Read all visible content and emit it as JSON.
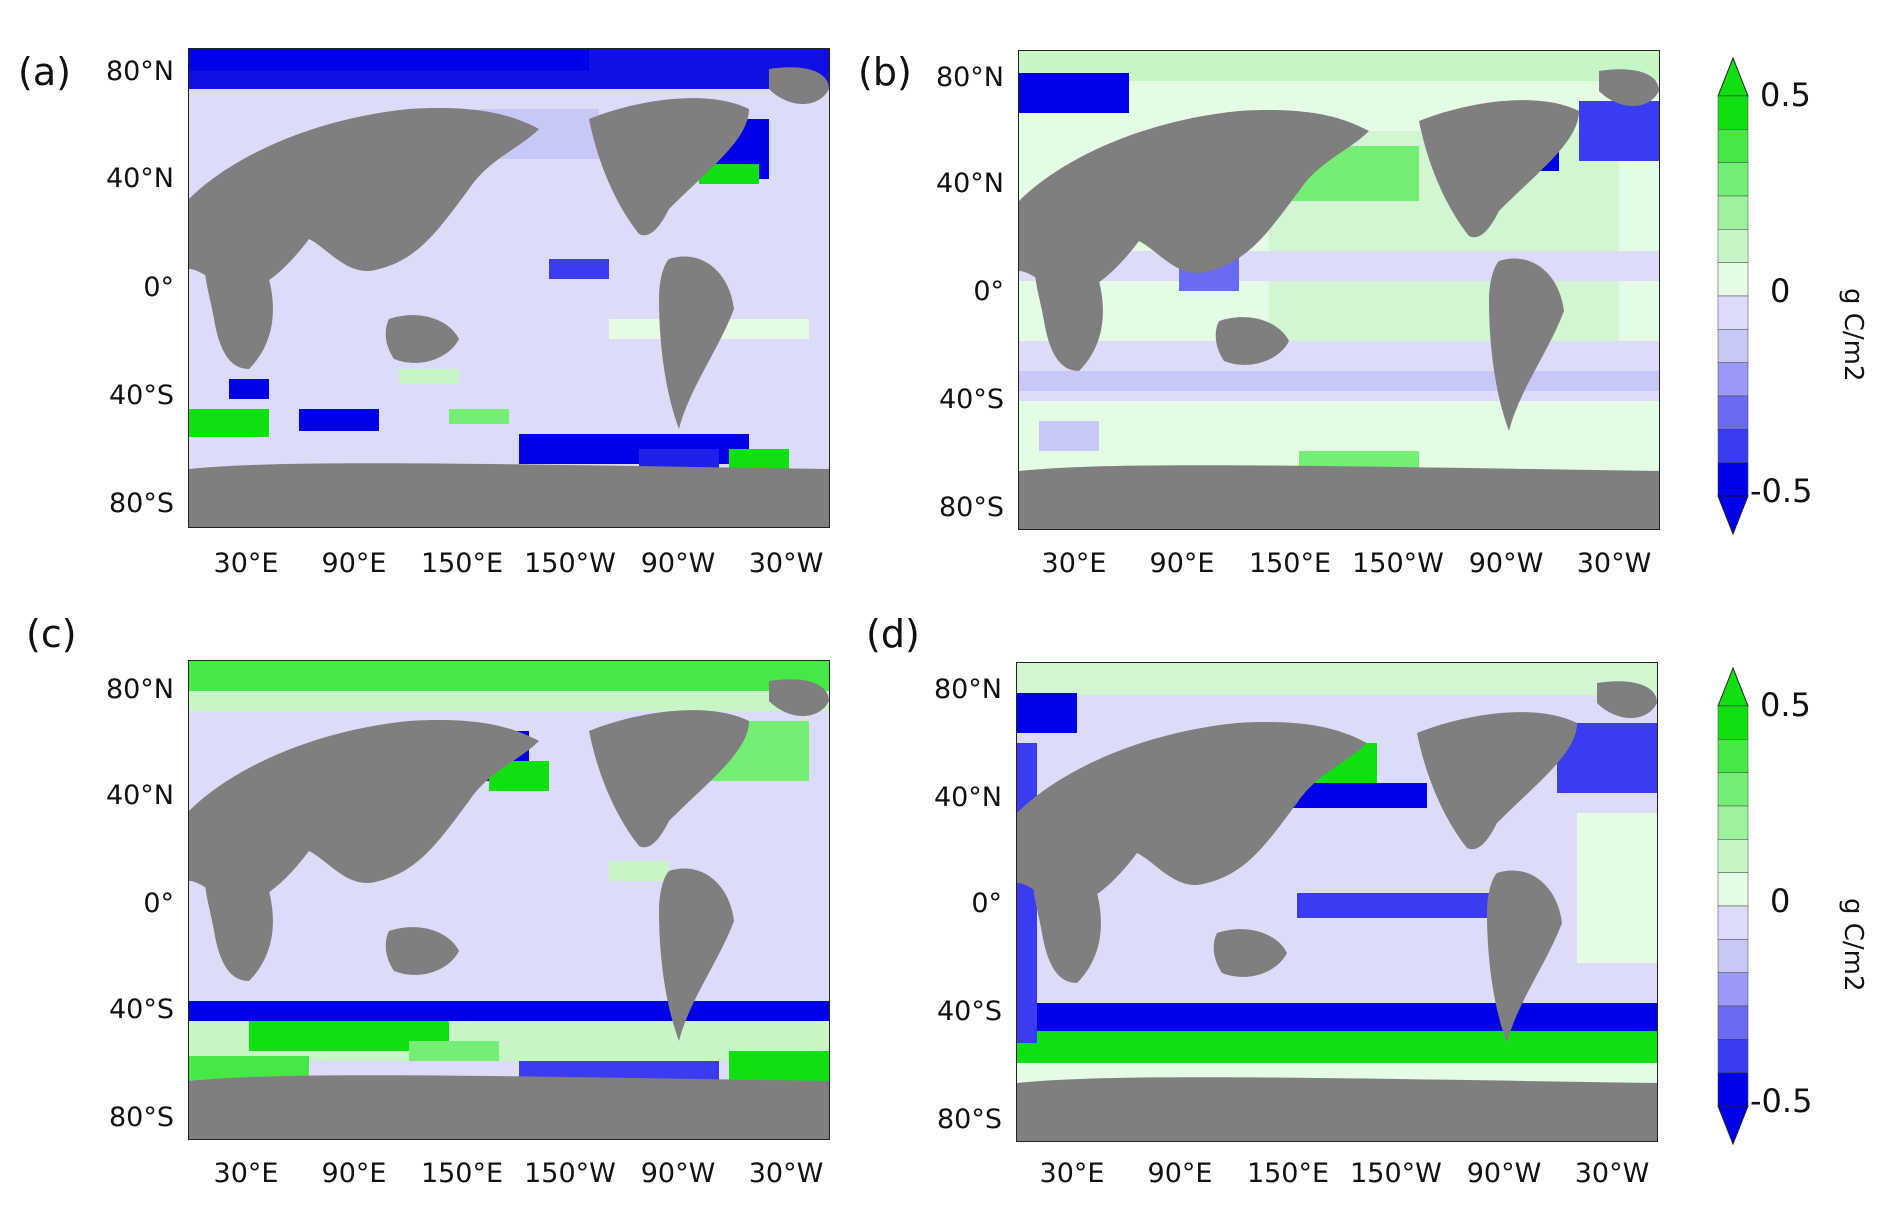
{
  "panels": [
    {
      "id": "a",
      "label": "(a)"
    },
    {
      "id": "b",
      "label": "(b)"
    },
    {
      "id": "c",
      "label": "(c)"
    },
    {
      "id": "d",
      "label": "(d)"
    }
  ],
  "lat_ticks": [
    "80°N",
    "40°N",
    "0°",
    "40°S",
    "80°S"
  ],
  "lon_ticks": [
    "30°E",
    "90°E",
    "150°E",
    "150°W",
    "90°W",
    "30°W"
  ],
  "colorbar": {
    "top_label": "0.5",
    "mid_label": "0",
    "bottom_label": "-0.5",
    "unit": "g C/m2",
    "range": [
      -0.5,
      0.5
    ],
    "colors": [
      "#0000e8",
      "#3b3bf2",
      "#6a6af4",
      "#9a9af6",
      "#c8c8f8",
      "#dcdcfa",
      "#e4fbe4",
      "#c6f6c6",
      "#9ef29e",
      "#74ee74",
      "#46e846",
      "#10e010"
    ]
  },
  "land_color": "#7f7f7f",
  "colors": {
    "strong_negative": "#0000e8",
    "strong_positive": "#10e010"
  }
}
